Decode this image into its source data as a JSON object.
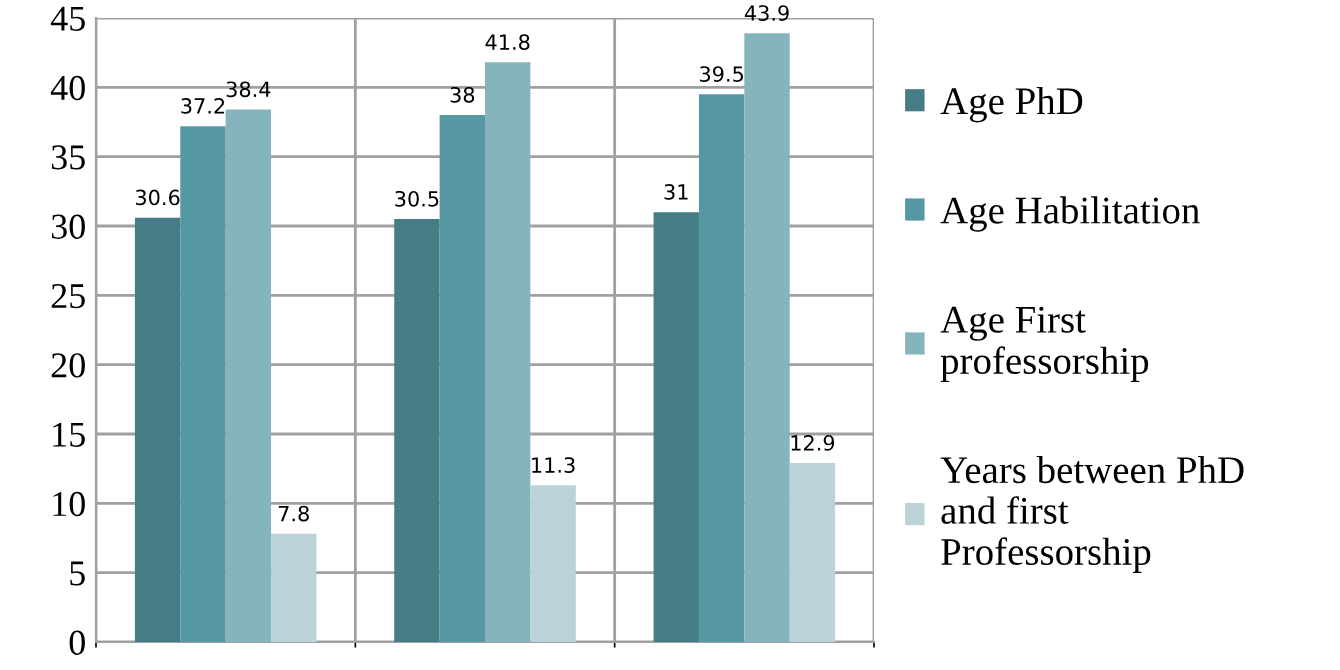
{
  "chart_data": {
    "type": "bar",
    "categories": [
      null,
      null,
      null
    ],
    "series": [
      {
        "name": "Age PhD",
        "color": "#457c86",
        "values": [
          30.6,
          30.5,
          31
        ]
      },
      {
        "name": "Age Habilitation",
        "color": "#5598a3",
        "values": [
          37.2,
          38,
          39.5
        ]
      },
      {
        "name": "Age First professorship",
        "color": "#86b4bc",
        "values": [
          38.4,
          41.8,
          43.9
        ]
      },
      {
        "name": "Years between PhD and first Professorship",
        "color": "#bad2d8",
        "values": [
          7.8,
          11.3,
          12.9
        ]
      }
    ],
    "ylim": [
      0,
      45
    ],
    "yticks": [
      0,
      5,
      10,
      15,
      20,
      25,
      30,
      35,
      40,
      45
    ],
    "grid": true,
    "legend": "right",
    "data_labels": true
  }
}
